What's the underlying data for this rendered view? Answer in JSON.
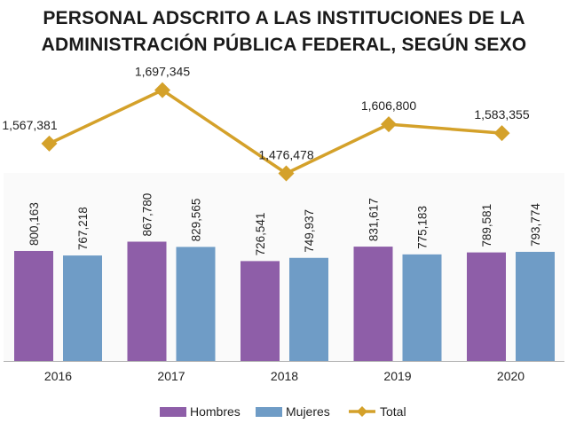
{
  "title": {
    "line1": "PERSONAL ADSCRITO A LAS INSTITUCIONES DE LA",
    "line2": "ADMINISTRACIÓN PÚBLICA FEDERAL, SEGÚN SEXO"
  },
  "colors": {
    "hombres": "#8e5ea8",
    "mujeres": "#6f9cc6",
    "total": "#d4a12a",
    "axis": "#b0b0b0"
  },
  "chart_data": {
    "type": "bar",
    "categories": [
      "2016",
      "2017",
      "2018",
      "2019",
      "2020"
    ],
    "series": [
      {
        "name": "Hombres",
        "type": "bar",
        "values": [
          800163,
          867780,
          726541,
          831617,
          789581
        ],
        "labels": [
          "800,163",
          "867,780",
          "726,541",
          "831,617",
          "789,581"
        ]
      },
      {
        "name": "Mujeres",
        "type": "bar",
        "values": [
          767218,
          829565,
          749937,
          775183,
          793774
        ],
        "labels": [
          "767,218",
          "829,565",
          "749,937",
          "775,183",
          "793,774"
        ]
      },
      {
        "name": "Total",
        "type": "line",
        "values": [
          1567381,
          1697345,
          1476478,
          1606800,
          1583355
        ],
        "labels": [
          "1,567,381",
          "1,697,345",
          "1,476,478",
          "1,606,800",
          "1,583,355"
        ]
      }
    ],
    "legend": [
      "Hombres",
      "Mujeres",
      "Total"
    ],
    "legend_position": "bottom",
    "grid": false
  }
}
